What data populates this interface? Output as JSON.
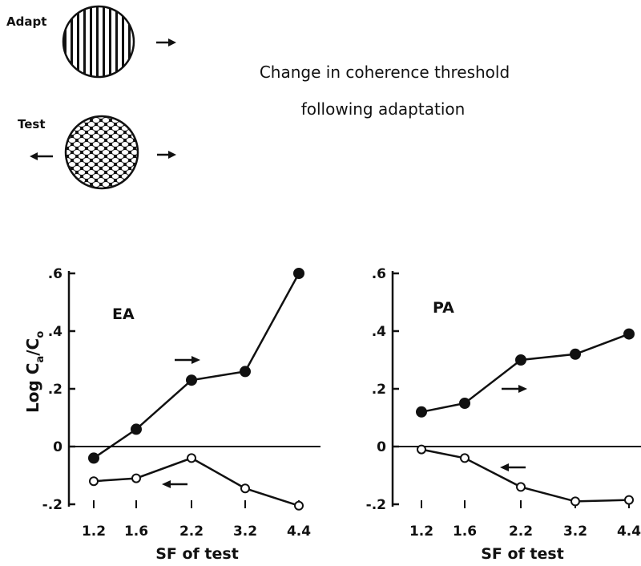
{
  "header": {
    "adapt_label": "Adapt",
    "test_label": "Test",
    "title_line1": "Change in coherence threshold",
    "title_line2": "following adaptation"
  },
  "chart_data": [
    {
      "type": "line",
      "title": "EA",
      "xlabel": "SF of test",
      "ylabel": "Log C_a/C_o",
      "x": [
        "1.2",
        "1.6",
        "2.2",
        "3.2",
        "4.4"
      ],
      "ylim": [
        -0.2,
        0.6
      ],
      "yticks": [
        ".6",
        ".4",
        ".2",
        "0",
        "-.2"
      ],
      "series": [
        {
          "marker": "filled",
          "arrow": "right",
          "values": [
            -0.04,
            0.06,
            0.23,
            0.26,
            0.6
          ]
        },
        {
          "marker": "open",
          "arrow": "left",
          "values": [
            -0.12,
            -0.11,
            -0.04,
            -0.145,
            -0.205
          ]
        }
      ]
    },
    {
      "type": "line",
      "title": "PA",
      "xlabel": "SF of test",
      "ylabel": "",
      "x": [
        "1.2",
        "1.6",
        "2.2",
        "3.2",
        "4.4"
      ],
      "ylim": [
        -0.2,
        0.6
      ],
      "yticks": [
        ".6",
        ".4",
        ".2",
        "0",
        "-.2"
      ],
      "series": [
        {
          "marker": "filled",
          "arrow": "right",
          "values": [
            0.12,
            0.15,
            0.3,
            0.32,
            0.39
          ]
        },
        {
          "marker": "open",
          "arrow": "left",
          "values": [
            -0.01,
            -0.04,
            -0.14,
            -0.19,
            -0.185
          ]
        }
      ]
    }
  ]
}
